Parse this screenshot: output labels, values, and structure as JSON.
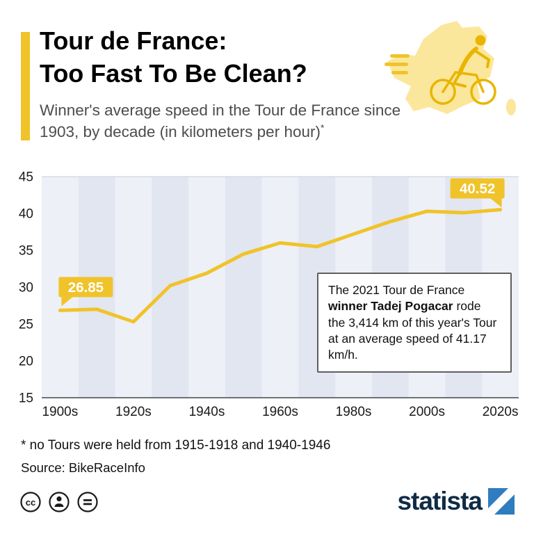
{
  "header": {
    "title_line1": "Tour de France:",
    "title_line2": "Too Fast To Be Clean?",
    "subtitle": "Winner's average speed in the Tour de France since 1903, by decade (in kilometers per hour)",
    "subtitle_footnote_marker": "*"
  },
  "chart_data": {
    "type": "line",
    "categories": [
      "1900s",
      "1910s",
      "1920s",
      "1930s",
      "1940s",
      "1950s",
      "1960s",
      "1970s",
      "1980s",
      "1990s",
      "2000s",
      "2010s",
      "2020s"
    ],
    "values": [
      26.85,
      27.0,
      25.3,
      30.2,
      31.9,
      34.5,
      36.0,
      35.5,
      37.2,
      38.9,
      40.3,
      40.1,
      40.52
    ],
    "x_tick_labels": [
      "1900s",
      "1920s",
      "1940s",
      "1960s",
      "1980s",
      "2000s",
      "2020s"
    ],
    "y_ticks": [
      15,
      20,
      25,
      30,
      35,
      40,
      45
    ],
    "ylim": [
      15,
      45
    ],
    "first_point_label": "26.85",
    "last_point_label": "40.52",
    "line_color": "#F0C32A",
    "label_bg_color": "#F0C32A",
    "label_text_color": "#ffffff",
    "plot_bg_color": "#EDF0F7",
    "stripe_color": "#E2E6F1",
    "legend_position": "none",
    "grid": "top and bottom border lines only, vertical alternating stripes"
  },
  "annotation": {
    "text_before_bold": "The 2021 Tour de France ",
    "bold_text": "winner Tadej Pogacar",
    "text_after_bold": " rode the 3,414 km of this year's Tour at an average speed of 41.17 km/h."
  },
  "footer": {
    "footnote": "* no Tours were held from 1915-1918 and 1940-1946",
    "source": "Source: BikeRaceInfo"
  },
  "branding": {
    "logo_text": "statista",
    "license_icons": [
      "cc-icon",
      "attribution-person-icon",
      "equals-icon"
    ]
  }
}
